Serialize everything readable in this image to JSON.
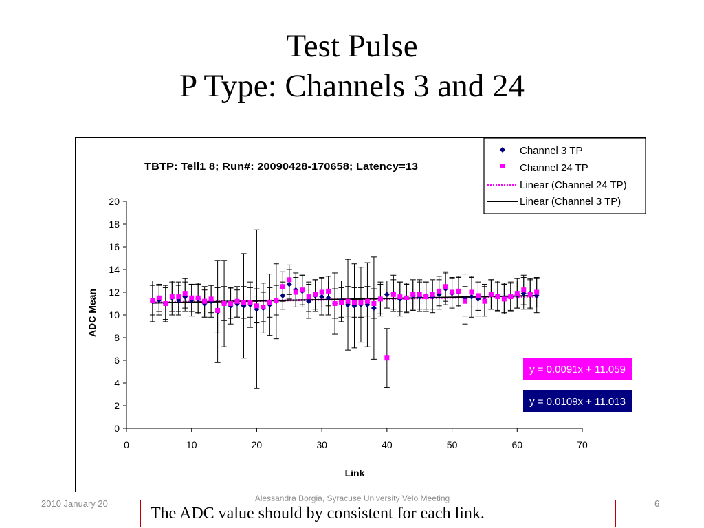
{
  "slide": {
    "title_line1": "Test Pulse",
    "title_line2": "P Type: Channels 3 and 24",
    "footer_date": "2010 January 20",
    "footer_author": "Alessandra Borgia, Syracuse University Velo Meeting",
    "page_number": "6",
    "note": "The ADC value should by consistent for each link."
  },
  "colors": {
    "channel3": "#00007f",
    "channel24": "#ff00ff",
    "fit3_box": "#000080",
    "fit24_box": "#ff00ff",
    "note_border": "#c00000"
  },
  "chart_data": {
    "type": "scatter",
    "title": "TBTP: Tell1 8; Run#: 20090428-170658; Latency=13",
    "xlabel": "Link",
    "ylabel": "ADC Mean",
    "xlim": [
      0,
      70
    ],
    "ylim": [
      0,
      20
    ],
    "xticks": [
      0,
      10,
      20,
      30,
      40,
      50,
      60,
      70
    ],
    "yticks": [
      0,
      2,
      4,
      6,
      8,
      10,
      12,
      14,
      16,
      18,
      20
    ],
    "grid": false,
    "legend_position": "top-right",
    "legend": [
      "Channel 3 TP",
      "Channel 24 TP",
      "Linear (Channel 24 TP)",
      "Linear (Channel 3 TP)"
    ],
    "x": [
      4,
      5,
      6,
      7,
      8,
      9,
      10,
      11,
      12,
      13,
      14,
      15,
      16,
      17,
      18,
      19,
      20,
      21,
      22,
      23,
      24,
      25,
      26,
      27,
      28,
      29,
      30,
      31,
      32,
      33,
      34,
      35,
      36,
      37,
      38,
      39,
      40,
      41,
      42,
      43,
      44,
      45,
      46,
      47,
      48,
      49,
      50,
      51,
      52,
      53,
      54,
      55,
      56,
      57,
      58,
      59,
      60,
      61,
      62,
      63
    ],
    "series": [
      {
        "name": "Channel 3 TP",
        "marker": "diamond",
        "y": [
          11.2,
          11.3,
          11.0,
          11.5,
          11.3,
          11.6,
          11.3,
          11.4,
          11.0,
          11.2,
          10.3,
          11.0,
          10.8,
          11.0,
          10.8,
          10.9,
          10.5,
          10.6,
          10.9,
          11.2,
          11.7,
          12.7,
          12.2,
          12.1,
          11.2,
          11.7,
          11.6,
          11.5,
          11.0,
          11.2,
          10.9,
          10.8,
          10.9,
          10.9,
          10.6,
          11.4,
          11.8,
          11.9,
          11.4,
          11.5,
          11.7,
          11.6,
          11.7,
          11.6,
          11.8,
          12.3,
          11.9,
          12.0,
          11.4,
          11.6,
          11.4,
          11.3,
          11.8,
          11.7,
          11.5,
          11.6,
          11.8,
          11.9,
          11.9,
          11.7
        ],
        "err": [
          1.8,
          1.3,
          1.6,
          1.5,
          1.3,
          1.3,
          1.4,
          1.3,
          1.2,
          1.4,
          4.5,
          3.8,
          1.6,
          1.2,
          4.6,
          2.0,
          7.0,
          2.2,
          2.7,
          3.3,
          1.2,
          1.3,
          1.5,
          1.4,
          1.5,
          1.4,
          1.6,
          1.5,
          2.7,
          1.8,
          4.0,
          3.7,
          3.3,
          3.7,
          4.5,
          1.5,
          1.2,
          1.6,
          1.5,
          1.2,
          1.3,
          1.3,
          1.2,
          1.4,
          1.3,
          1.4,
          1.3,
          1.3,
          2.2,
          1.8,
          1.5,
          1.4,
          1.3,
          1.3,
          1.3,
          1.2,
          1.2,
          1.4,
          1.3,
          1.5
        ]
      },
      {
        "name": "Channel 24 TP",
        "marker": "square",
        "y": [
          11.3,
          11.5,
          11.0,
          11.6,
          11.6,
          11.9,
          11.5,
          11.5,
          11.2,
          11.4,
          10.4,
          11.0,
          11.0,
          11.2,
          11.1,
          11.1,
          10.8,
          10.7,
          11.1,
          11.3,
          12.5,
          13.1,
          12.0,
          12.2,
          11.6,
          11.8,
          12.0,
          12.1,
          11.0,
          11.1,
          11.2,
          11.1,
          11.1,
          11.2,
          11.0,
          11.4,
          6.2,
          11.8,
          11.6,
          11.5,
          11.8,
          11.8,
          11.6,
          11.8,
          12.1,
          12.5,
          12.0,
          12.1,
          11.2,
          12.0,
          11.7,
          11.2,
          11.8,
          11.6,
          11.4,
          11.6,
          11.9,
          12.2,
          11.8,
          12.0
        ],
        "err": [
          1.3,
          1.2,
          1.4,
          1.3,
          1.3,
          1.3,
          1.2,
          1.3,
          1.3,
          1.2,
          2.0,
          1.5,
          1.3,
          1.3,
          1.4,
          1.3,
          1.5,
          1.3,
          1.3,
          1.3,
          1.3,
          1.3,
          1.3,
          1.3,
          1.3,
          1.3,
          1.3,
          1.3,
          1.3,
          1.3,
          1.3,
          1.3,
          1.3,
          1.3,
          1.3,
          1.3,
          2.6,
          1.3,
          1.3,
          1.3,
          1.3,
          1.3,
          1.3,
          1.3,
          1.3,
          1.3,
          1.3,
          1.3,
          1.3,
          1.3,
          1.3,
          1.3,
          1.3,
          1.3,
          1.3,
          1.3,
          1.3,
          1.3,
          1.3,
          1.3
        ]
      }
    ],
    "fits": [
      {
        "name": "Linear (Channel 24 TP)",
        "slope": 0.0091,
        "intercept": 11.059,
        "label": "y = 0.0091x + 11.059"
      },
      {
        "name": "Linear (Channel 3 TP)",
        "slope": 0.0109,
        "intercept": 11.013,
        "label": "y = 0.0109x + 11.013"
      }
    ]
  }
}
